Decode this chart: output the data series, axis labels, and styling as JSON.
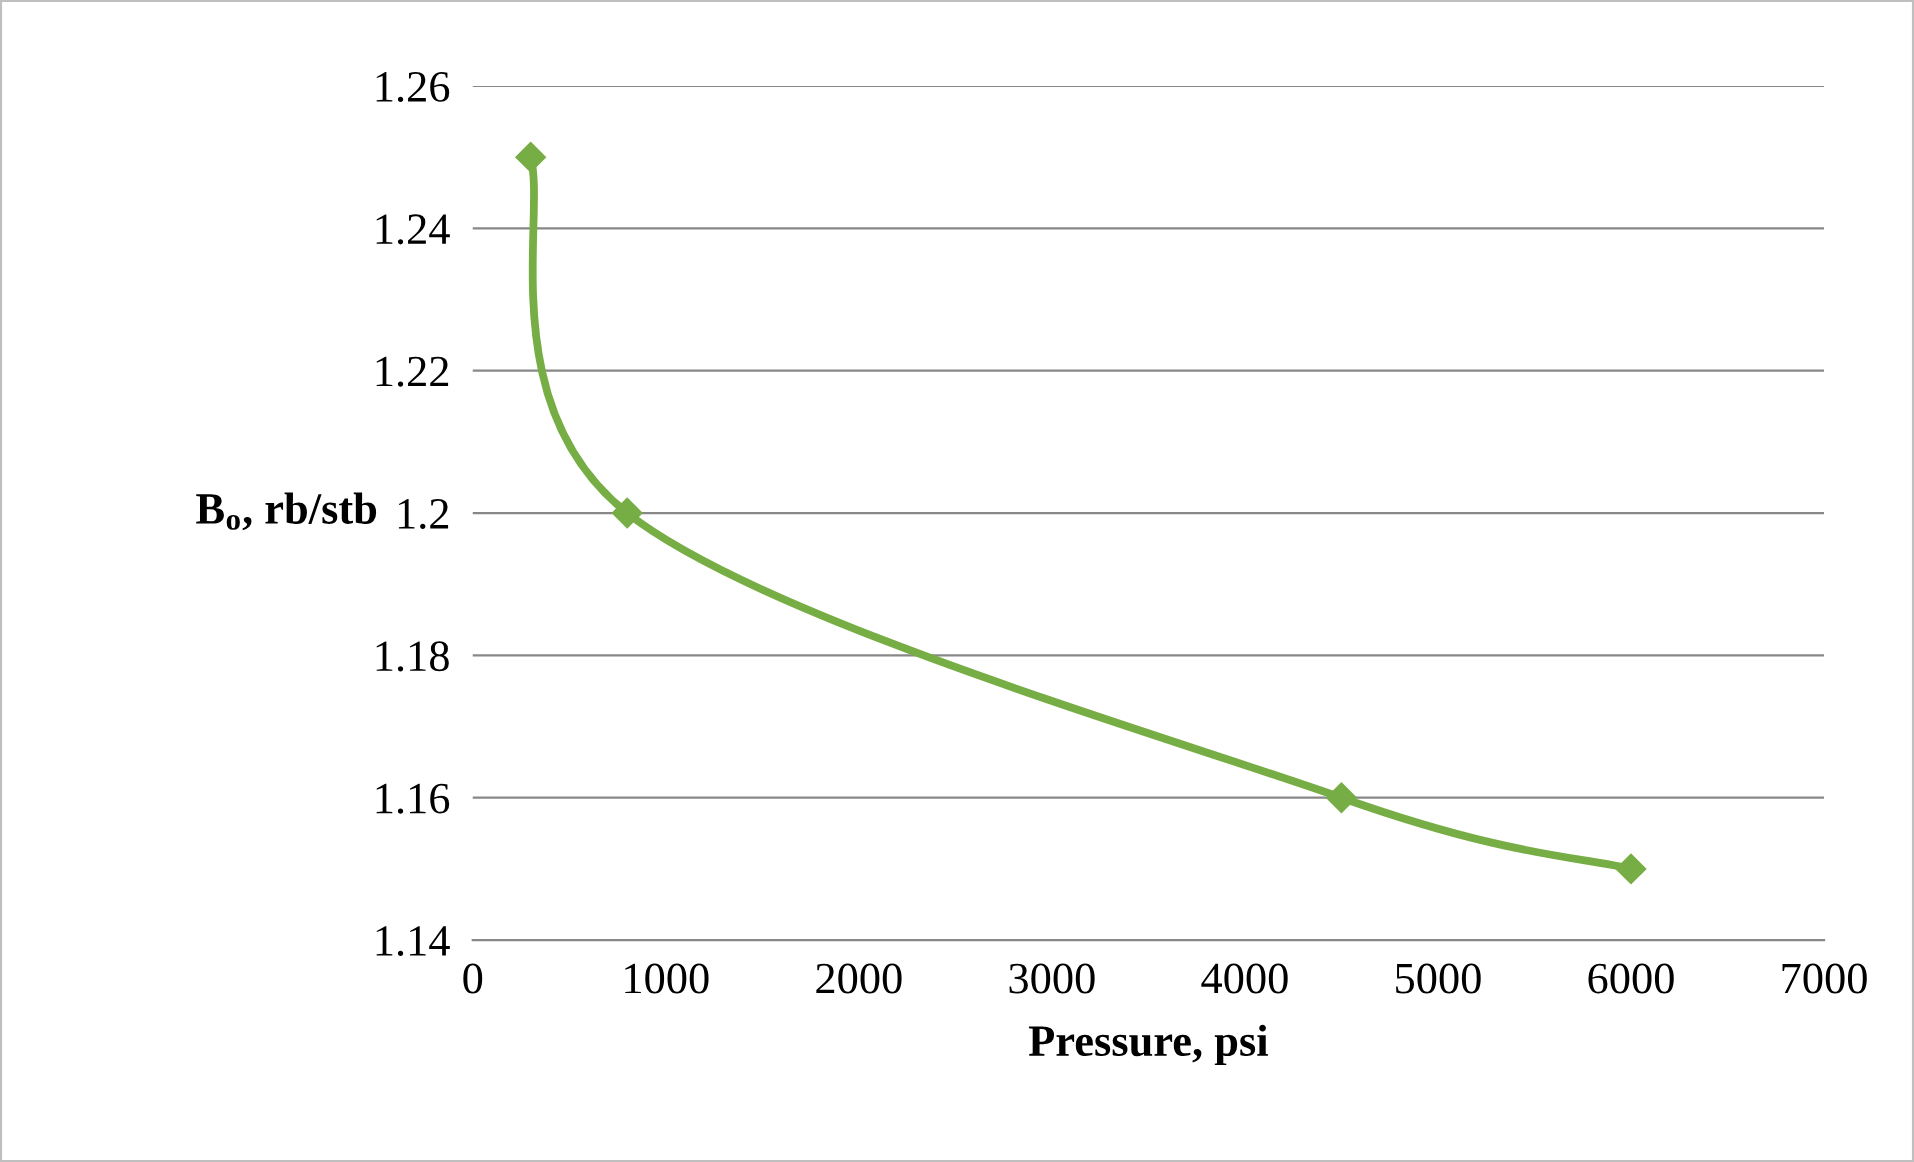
{
  "chart_data": {
    "type": "line",
    "xlabel": "Pressure, psi",
    "ylabel": "B$_{o}$, rb/stb",
    "x": [
      300,
      800,
      4500,
      6000
    ],
    "series": [
      {
        "color": "#77ad45",
        "values": [
          1.25,
          1.2,
          1.16,
          1.15
        ]
      }
    ],
    "xlim": [
      0,
      7000
    ],
    "xticks": [
      0,
      1000,
      2000,
      3000,
      4000,
      5000,
      6000,
      7000
    ],
    "ylim": [
      1.14,
      1.26
    ],
    "yticks": [
      {
        "value": 1.14,
        "label": "1.14"
      },
      {
        "value": 1.16,
        "label": "1.16"
      },
      {
        "value": 1.18,
        "label": "1.18"
      },
      {
        "value": 1.2,
        "label": "1.2"
      },
      {
        "value": 1.22,
        "label": "1.22"
      },
      {
        "value": 1.24,
        "label": "1.24"
      },
      {
        "value": 1.26,
        "label": "1.26"
      }
    ],
    "grid": "y",
    "marker": "diamond",
    "line_style": "solid",
    "legend": false
  }
}
